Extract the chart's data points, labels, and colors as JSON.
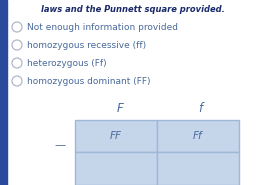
{
  "title_line": "laws and the Punnett square provided.",
  "options": [
    "Not enough information provided",
    "homozygous recessive (ff)",
    "heterozygous (Ff)",
    "homozygous dominant (FF)"
  ],
  "col_headers": [
    "F",
    "f"
  ],
  "row_label": "—",
  "cells": [
    [
      "FF",
      "Ff"
    ]
  ],
  "cell_color": "#c5d5ea",
  "cell_edge_color": "#a0b8d8",
  "text_color": "#4a6a9c",
  "title_color": "#1a2a6a",
  "option_color": "#4a6a9c",
  "radio_edge_color": "#b0b8c8",
  "bg_color": "#ffffff",
  "left_bar_color": "#2a4a9c",
  "option_fontsize": 6.5,
  "cell_fontsize": 7.5,
  "col_header_fontsize": 8.5,
  "title_fontsize": 6.0
}
